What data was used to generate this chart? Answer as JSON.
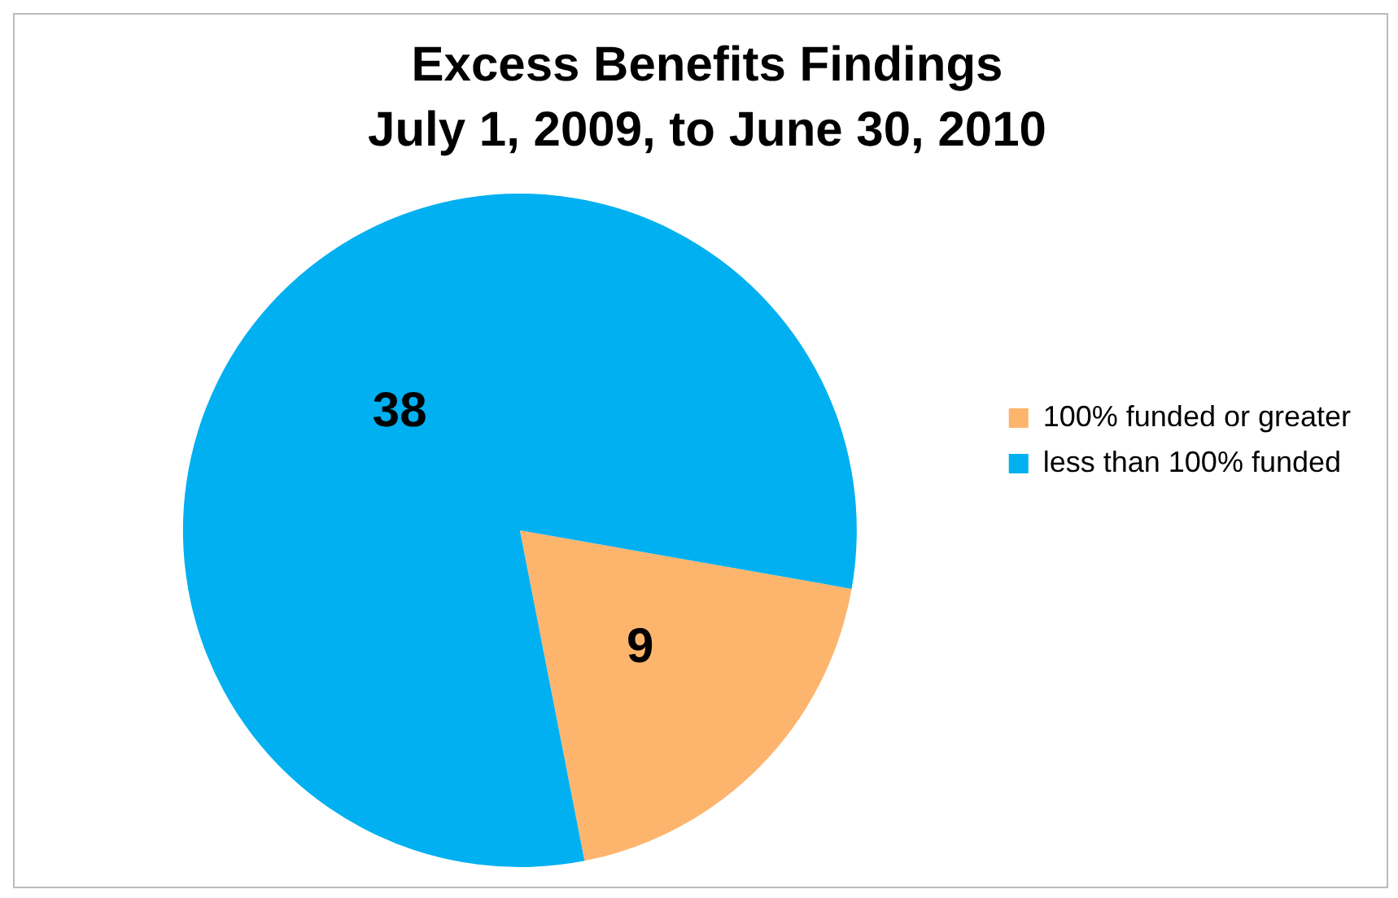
{
  "chart_data": {
    "type": "pie",
    "title": "Excess Benefits Findings",
    "subtitle": "July 1, 2009, to June 30, 2010",
    "categories": [
      "100% funded or greater",
      "less than 100% funded"
    ],
    "values": [
      9,
      38
    ],
    "colors": [
      "#fdb56e",
      "#00b0f0"
    ],
    "data_labels": true,
    "legend": "right"
  }
}
